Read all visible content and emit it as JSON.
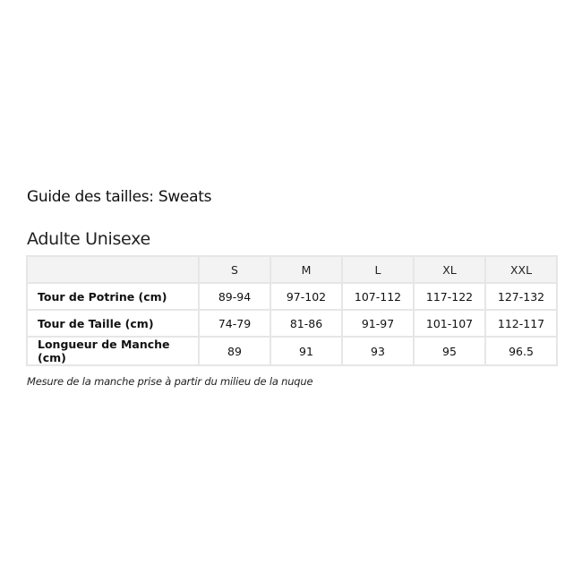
{
  "title": "Guide des tailles: Sweats",
  "subtitle": "Adulte Unisexe",
  "table": {
    "columns": [
      "",
      "S",
      "M",
      "L",
      "XL",
      "XXL"
    ],
    "rows": [
      {
        "label": "Tour de Potrine (cm)",
        "values": [
          "89-94",
          "97-102",
          "107-112",
          "117-122",
          "127-132"
        ]
      },
      {
        "label": "Tour de Taille (cm)",
        "values": [
          "74-79",
          "81-86",
          "91-97",
          "101-107",
          "112-117"
        ]
      },
      {
        "label": "Longueur de Manche (cm)",
        "values": [
          "89",
          "91",
          "93",
          "95",
          "96.5"
        ]
      }
    ]
  },
  "note": "Mesure de la manche prise à partir du milieu de la nuque"
}
